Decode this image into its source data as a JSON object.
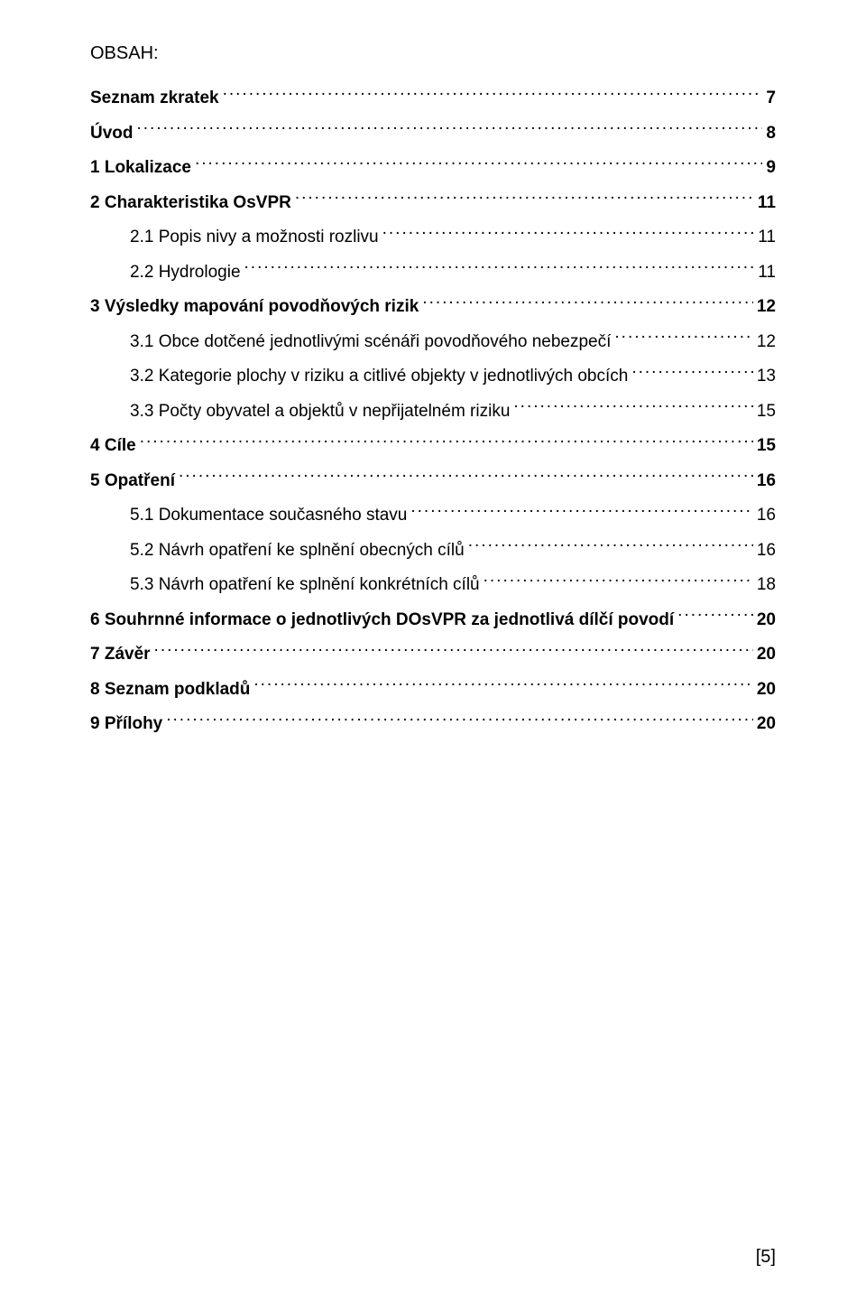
{
  "heading": "OBSAH:",
  "toc": [
    {
      "label": "Seznam zkratek",
      "page": "7",
      "bold": true,
      "indent": 0
    },
    {
      "label": "Úvod",
      "page": "8",
      "bold": true,
      "indent": 0
    },
    {
      "label": "1    Lokalizace",
      "page": "9",
      "bold": true,
      "indent": 0
    },
    {
      "label": "2    Charakteristika OsVPR",
      "page": "11",
      "bold": true,
      "indent": 0
    },
    {
      "label": "2.1    Popis nivy a možnosti rozlivu",
      "page": "11",
      "bold": false,
      "indent": 1
    },
    {
      "label": "2.2    Hydrologie",
      "page": "11",
      "bold": false,
      "indent": 1
    },
    {
      "label": "3    Výsledky mapování povodňových rizik",
      "page": "12",
      "bold": true,
      "indent": 0
    },
    {
      "label": "3.1    Obce dotčené jednotlivými scénáři povodňového nebezpečí",
      "page": "12",
      "bold": false,
      "indent": 1
    },
    {
      "label": "3.2    Kategorie plochy v riziku a citlivé objekty v jednotlivých obcích",
      "page": "13",
      "bold": false,
      "indent": 1
    },
    {
      "label": "3.3 Počty obyvatel a objektů v nepřijatelném riziku",
      "page": "15",
      "bold": false,
      "indent": 1
    },
    {
      "label": "4    Cíle",
      "page": "15",
      "bold": true,
      "indent": 0
    },
    {
      "label": "5    Opatření",
      "page": "16",
      "bold": true,
      "indent": 0
    },
    {
      "label": "5.1    Dokumentace současného stavu",
      "page": "16",
      "bold": false,
      "indent": 1
    },
    {
      "label": "5.2    Návrh opatření ke splnění obecných cílů",
      "page": "16",
      "bold": false,
      "indent": 1
    },
    {
      "label": "5.3    Návrh opatření ke splnění konkrétních cílů",
      "page": "18",
      "bold": false,
      "indent": 1
    },
    {
      "label": "6    Souhrnné informace o jednotlivých DOsVPR za jednotlivá dílčí povodí",
      "page": "20",
      "bold": true,
      "indent": 0
    },
    {
      "label": "7    Závěr",
      "page": "20",
      "bold": true,
      "indent": 0
    },
    {
      "label": "8    Seznam podkladů",
      "page": "20",
      "bold": true,
      "indent": 0
    },
    {
      "label": "9    Přílohy",
      "page": "20",
      "bold": true,
      "indent": 0
    }
  ],
  "pageNumber": "[5]"
}
